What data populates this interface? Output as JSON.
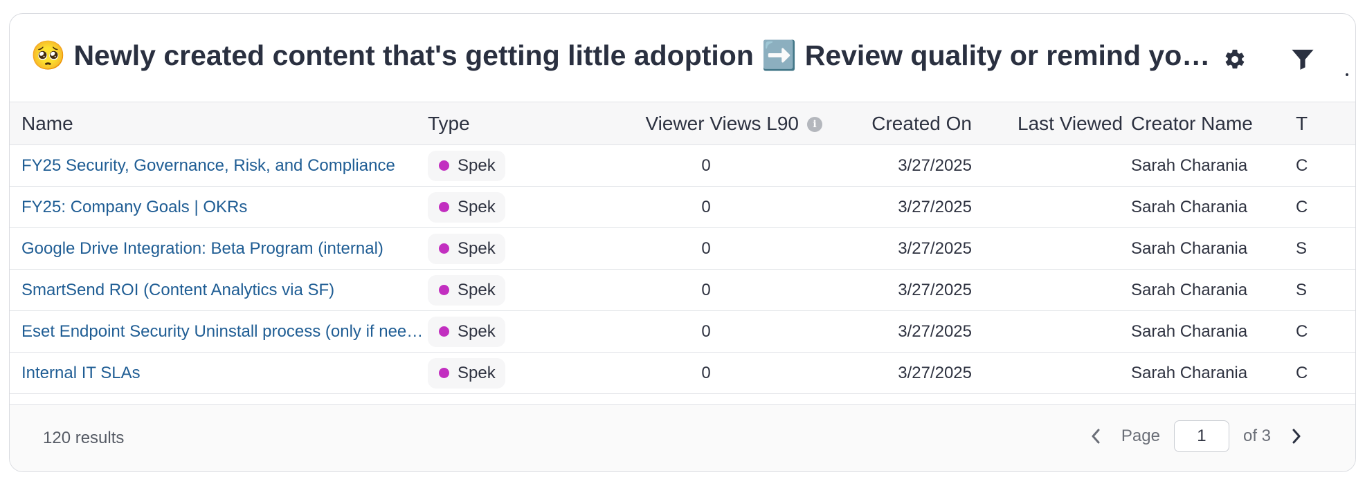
{
  "header": {
    "title": "🥺 Newly created content that's getting little adoption ➡️ Review quality or remind your team to use it",
    "gear_icon": "gear-icon",
    "filter_icon": "filter-icon"
  },
  "table": {
    "columns": {
      "name": "Name",
      "type": "Type",
      "viewer_views": "Viewer Views L90",
      "created_on": "Created On",
      "last_viewed": "Last Viewed",
      "creator_name": "Creator Name",
      "truncated": "T"
    },
    "rows": [
      {
        "name": "FY25 Security, Governance, Risk, and Compliance",
        "type": "Spek",
        "views": "0",
        "created": "3/27/2025",
        "last_viewed": "",
        "creator": "Sarah Charania",
        "extra": "C"
      },
      {
        "name": "FY25: Company Goals | OKRs",
        "type": "Spek",
        "views": "0",
        "created": "3/27/2025",
        "last_viewed": "",
        "creator": "Sarah Charania",
        "extra": "C"
      },
      {
        "name": "Google Drive Integration: Beta Program (internal)",
        "type": "Spek",
        "views": "0",
        "created": "3/27/2025",
        "last_viewed": "",
        "creator": "Sarah Charania",
        "extra": "S"
      },
      {
        "name": "SmartSend ROI (Content Analytics via SF)",
        "type": "Spek",
        "views": "0",
        "created": "3/27/2025",
        "last_viewed": "",
        "creator": "Sarah Charania",
        "extra": "S"
      },
      {
        "name": "Eset Endpoint Security Uninstall process (only if needed)",
        "type": "Spek",
        "views": "0",
        "created": "3/27/2025",
        "last_viewed": "",
        "creator": "Sarah Charania",
        "extra": "C"
      },
      {
        "name": "Internal IT SLAs",
        "type": "Spek",
        "views": "0",
        "created": "3/27/2025",
        "last_viewed": "",
        "creator": "Sarah Charania",
        "extra": "C"
      }
    ],
    "type_dot_color": "#c22fc0"
  },
  "footer": {
    "results": "120 results",
    "page_label": "Page",
    "page_value": "1",
    "of_label": "of 3"
  }
}
